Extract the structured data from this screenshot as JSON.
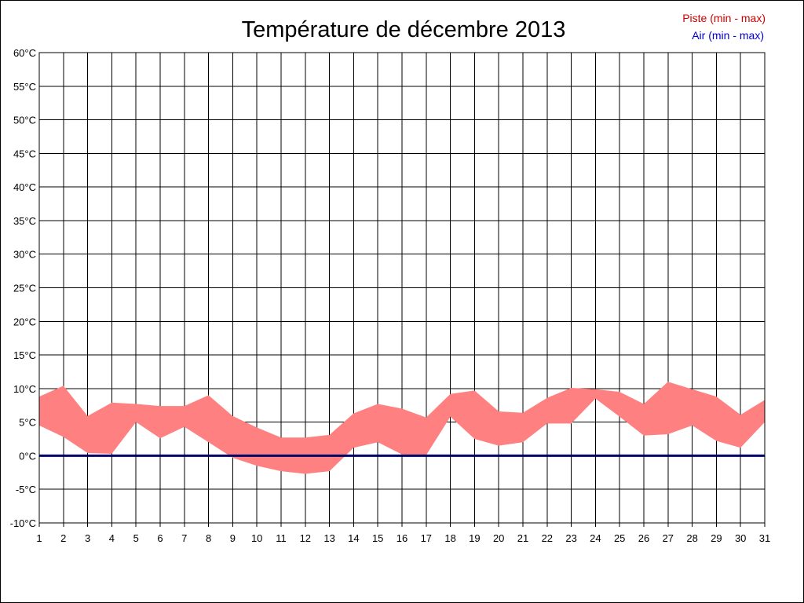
{
  "chart_data": {
    "type": "area",
    "title": "Température de décembre 2013",
    "xlabel": "",
    "ylabel": "",
    "x": [
      1,
      2,
      3,
      4,
      5,
      6,
      7,
      8,
      9,
      10,
      11,
      12,
      13,
      14,
      15,
      16,
      17,
      18,
      19,
      20,
      21,
      22,
      23,
      24,
      25,
      26,
      27,
      28,
      29,
      30,
      31
    ],
    "ylim": [
      -10,
      60
    ],
    "y_ticks": [
      -10,
      -5,
      0,
      5,
      10,
      15,
      20,
      25,
      30,
      35,
      40,
      45,
      50,
      55,
      60
    ],
    "y_tick_labels": [
      "-10°C",
      "-5°C",
      "0°C",
      "5°C",
      "10°C",
      "15°C",
      "20°C",
      "25°C",
      "30°C",
      "35°C",
      "40°C",
      "45°C",
      "50°C",
      "55°C",
      "60°C"
    ],
    "grid": true,
    "legend_position": "top-right",
    "series": [
      {
        "name": "Piste (min - max)",
        "color": "#ff8080",
        "legend_color": "#cc0000",
        "min": [
          4.5,
          2.8,
          0.4,
          0.3,
          5.0,
          2.6,
          4.3,
          2.0,
          -0.3,
          -1.5,
          -2.3,
          -2.7,
          -2.3,
          1.2,
          2.0,
          0.2,
          0.1,
          5.8,
          2.5,
          1.5,
          2.0,
          4.8,
          4.8,
          8.5,
          5.8,
          3.0,
          3.2,
          4.5,
          2.2,
          1.2,
          5.0
        ],
        "max": [
          8.8,
          10.4,
          5.9,
          7.9,
          7.7,
          7.4,
          7.4,
          9.0,
          5.9,
          4.2,
          2.7,
          2.7,
          3.1,
          6.3,
          7.7,
          7.0,
          5.7,
          9.2,
          9.7,
          6.6,
          6.4,
          8.6,
          10.1,
          9.9,
          9.5,
          7.7,
          11.0,
          9.9,
          8.8,
          6.1,
          8.3
        ]
      },
      {
        "name": "Air (min - max)",
        "color": "#000066",
        "legend_color": "#0000cc",
        "min": [
          0,
          0,
          0,
          0,
          0,
          0,
          0,
          0,
          0,
          0,
          0,
          0,
          0,
          0,
          0,
          0,
          0,
          0,
          0,
          0,
          0,
          0,
          0,
          0,
          0,
          0,
          0,
          0,
          0,
          0,
          0
        ],
        "max": [
          0,
          0,
          0,
          0,
          0,
          0,
          0,
          0,
          0,
          0,
          0,
          0,
          0,
          0,
          0,
          0,
          0,
          0,
          0,
          0,
          0,
          0,
          0,
          0,
          0,
          0,
          0,
          0,
          0,
          0,
          0
        ]
      }
    ]
  }
}
